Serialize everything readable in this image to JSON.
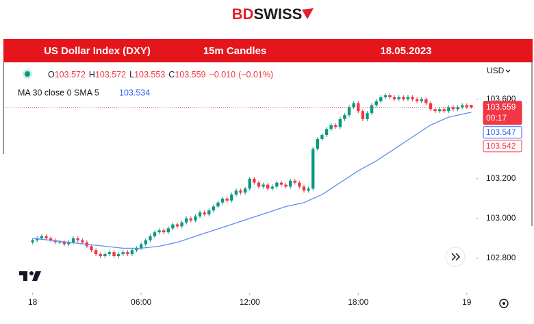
{
  "chart_data": {
    "type": "candlestick",
    "logo_parts": [
      "BD",
      "SWISS"
    ],
    "header": [
      "US Dollar Index (DXY)",
      "15m Candles",
      "18.05.2023"
    ],
    "currency": "USD",
    "ohlc": [
      {
        "label": "O",
        "value": 103.572
      },
      {
        "label": "H",
        "value": 103.572
      },
      {
        "label": "L",
        "value": 103.553
      },
      {
        "label": "C",
        "value": 103.559
      }
    ],
    "change": "−0.010",
    "change_pct": "(−0.01%)",
    "indicator": {
      "name": "MA 30 close 0 SMA 5",
      "value": 103.534,
      "color": "#5b8def",
      "x": [
        0,
        1,
        2,
        3,
        4,
        5,
        6,
        7,
        8,
        9,
        10,
        11,
        12,
        13,
        14,
        15,
        16,
        17,
        18,
        19,
        20,
        21,
        22,
        23,
        24,
        24.25
      ],
      "values": [
        102.9,
        102.89,
        102.88,
        102.87,
        102.86,
        102.85,
        102.85,
        102.86,
        102.88,
        102.91,
        102.94,
        102.97,
        103.0,
        103.03,
        103.06,
        103.08,
        103.12,
        103.18,
        103.24,
        103.29,
        103.35,
        103.41,
        103.47,
        103.51,
        103.53,
        103.534
      ]
    },
    "up_color": "#089981",
    "down_color": "#f23645",
    "x": [
      0,
      0.25,
      0.5,
      0.75,
      1,
      1.25,
      1.5,
      1.75,
      2,
      2.25,
      2.5,
      2.75,
      3,
      3.25,
      3.5,
      3.75,
      4,
      4.25,
      4.5,
      4.75,
      5,
      5.25,
      5.5,
      5.75,
      6,
      6.25,
      6.5,
      6.75,
      7,
      7.25,
      7.5,
      7.75,
      8,
      8.25,
      8.5,
      8.75,
      9,
      9.25,
      9.5,
      9.75,
      10,
      10.25,
      10.5,
      10.75,
      11,
      11.25,
      11.5,
      11.75,
      12,
      12.25,
      12.5,
      12.75,
      13,
      13.25,
      13.5,
      13.75,
      14,
      14.25,
      14.5,
      14.75,
      15,
      15.25,
      15.5,
      15.75,
      16,
      16.25,
      16.5,
      16.75,
      17,
      17.25,
      17.5,
      17.75,
      18,
      18.25,
      18.5,
      18.75,
      19,
      19.25,
      19.5,
      19.75,
      20,
      20.25,
      20.5,
      20.75,
      21,
      21.25,
      21.5,
      21.75,
      22,
      22.25,
      22.5,
      22.75,
      23,
      23.25,
      23.5,
      23.75,
      24,
      24.25
    ],
    "open": [
      102.88,
      102.89,
      102.9,
      102.91,
      102.9,
      102.89,
      102.88,
      102.88,
      102.87,
      102.88,
      102.9,
      102.89,
      102.88,
      102.86,
      102.84,
      102.82,
      102.81,
      102.82,
      102.83,
      102.81,
      102.82,
      102.83,
      102.82,
      102.84,
      102.85,
      102.87,
      102.89,
      102.91,
      102.93,
      102.94,
      102.93,
      102.95,
      102.97,
      102.96,
      102.98,
      103.0,
      102.99,
      103.01,
      103.03,
      103.02,
      103.04,
      103.06,
      103.08,
      103.1,
      103.09,
      103.12,
      103.14,
      103.13,
      103.15,
      103.2,
      103.18,
      103.16,
      103.17,
      103.15,
      103.16,
      103.18,
      103.17,
      103.16,
      103.19,
      103.18,
      103.16,
      103.14,
      103.15,
      103.35,
      103.4,
      103.42,
      103.45,
      103.47,
      103.46,
      103.5,
      103.52,
      103.56,
      103.58,
      103.54,
      103.5,
      103.53,
      103.57,
      103.59,
      103.61,
      103.62,
      103.61,
      103.6,
      103.61,
      103.6,
      103.61,
      103.6,
      103.59,
      103.6,
      103.58,
      103.55,
      103.54,
      103.55,
      103.54,
      103.56,
      103.55,
      103.56,
      103.57,
      103.572
    ],
    "high": [
      102.9,
      102.91,
      102.92,
      102.92,
      102.91,
      102.9,
      102.89,
      102.89,
      102.89,
      102.91,
      102.91,
      102.9,
      102.89,
      102.87,
      102.85,
      102.83,
      102.83,
      102.84,
      102.84,
      102.83,
      102.84,
      102.84,
      102.85,
      102.86,
      102.88,
      102.9,
      102.92,
      102.94,
      102.95,
      102.95,
      102.96,
      102.98,
      102.98,
      102.99,
      103.01,
      103.01,
      103.02,
      103.04,
      103.04,
      103.05,
      103.07,
      103.09,
      103.11,
      103.11,
      103.13,
      103.15,
      103.15,
      103.16,
      103.21,
      103.21,
      103.19,
      103.18,
      103.18,
      103.17,
      103.19,
      103.19,
      103.18,
      103.2,
      103.2,
      103.19,
      103.17,
      103.16,
      103.36,
      103.41,
      103.43,
      103.46,
      103.48,
      103.48,
      103.51,
      103.53,
      103.57,
      103.59,
      103.59,
      103.55,
      103.54,
      103.58,
      103.6,
      103.62,
      103.63,
      103.63,
      103.62,
      103.62,
      103.62,
      103.62,
      103.62,
      103.61,
      103.61,
      103.61,
      103.59,
      103.56,
      103.56,
      103.56,
      103.57,
      103.57,
      103.57,
      103.58,
      103.58,
      103.572
    ],
    "low": [
      102.87,
      102.88,
      102.89,
      102.89,
      102.88,
      102.87,
      102.87,
      102.86,
      102.86,
      102.87,
      102.88,
      102.87,
      102.85,
      102.83,
      102.81,
      102.8,
      102.8,
      102.81,
      102.8,
      102.8,
      102.81,
      102.81,
      102.81,
      102.83,
      102.84,
      102.86,
      102.88,
      102.9,
      102.92,
      102.92,
      102.92,
      102.94,
      102.95,
      102.95,
      102.97,
      102.98,
      102.98,
      103.0,
      103.01,
      103.01,
      103.03,
      103.05,
      103.07,
      103.08,
      103.08,
      103.11,
      103.12,
      103.12,
      103.14,
      103.17,
      103.15,
      103.15,
      103.14,
      103.14,
      103.15,
      103.16,
      103.15,
      103.15,
      103.17,
      103.15,
      103.13,
      103.13,
      103.14,
      103.34,
      103.39,
      103.41,
      103.44,
      103.45,
      103.45,
      103.49,
      103.51,
      103.55,
      103.53,
      103.49,
      103.49,
      103.52,
      103.56,
      103.58,
      103.6,
      103.6,
      103.59,
      103.59,
      103.59,
      103.59,
      103.59,
      103.58,
      103.58,
      103.57,
      103.54,
      103.53,
      103.53,
      103.53,
      103.53,
      103.54,
      103.54,
      103.55,
      103.55,
      103.553
    ],
    "close": [
      102.89,
      102.9,
      102.91,
      102.9,
      102.89,
      102.88,
      102.88,
      102.87,
      102.88,
      102.9,
      102.89,
      102.88,
      102.86,
      102.84,
      102.82,
      102.81,
      102.82,
      102.83,
      102.81,
      102.82,
      102.83,
      102.82,
      102.84,
      102.85,
      102.87,
      102.89,
      102.91,
      102.93,
      102.94,
      102.93,
      102.95,
      102.97,
      102.96,
      102.98,
      103.0,
      102.99,
      103.01,
      103.03,
      103.02,
      103.04,
      103.06,
      103.08,
      103.1,
      103.09,
      103.12,
      103.14,
      103.13,
      103.15,
      103.2,
      103.18,
      103.16,
      103.17,
      103.15,
      103.16,
      103.18,
      103.17,
      103.16,
      103.19,
      103.18,
      103.16,
      103.14,
      103.15,
      103.35,
      103.4,
      103.42,
      103.45,
      103.47,
      103.46,
      103.5,
      103.52,
      103.56,
      103.58,
      103.54,
      103.5,
      103.53,
      103.57,
      103.59,
      103.61,
      103.62,
      103.61,
      103.6,
      103.61,
      103.6,
      103.61,
      103.6,
      103.59,
      103.6,
      103.58,
      103.55,
      103.54,
      103.55,
      103.54,
      103.56,
      103.55,
      103.56,
      103.57,
      103.56,
      103.559
    ],
    "xlim": [
      -1.5,
      24.5
    ],
    "xticks": [
      {
        "value": 0,
        "label": "18"
      },
      {
        "value": 6,
        "label": "06:00"
      },
      {
        "value": 12,
        "label": "12:00"
      },
      {
        "value": 18,
        "label": "18:00"
      },
      {
        "value": 24,
        "label": "19"
      }
    ],
    "ylim": [
      102.634,
      103.772
    ],
    "yticks": [
      {
        "value": 102.8,
        "label": "102.800"
      },
      {
        "value": 103.0,
        "label": "103.000"
      },
      {
        "value": 103.2,
        "label": "103.200"
      },
      {
        "value": 103.6,
        "label": "103.600"
      }
    ],
    "grid": false,
    "price_labels": [
      {
        "value": 103.559,
        "time": "00:17",
        "color": "#f23645",
        "filled": true
      },
      {
        "value": 103.547,
        "color": "#2962ff",
        "filled": false
      },
      {
        "value": 103.542,
        "color": "#f23645",
        "filled": false
      }
    ]
  }
}
